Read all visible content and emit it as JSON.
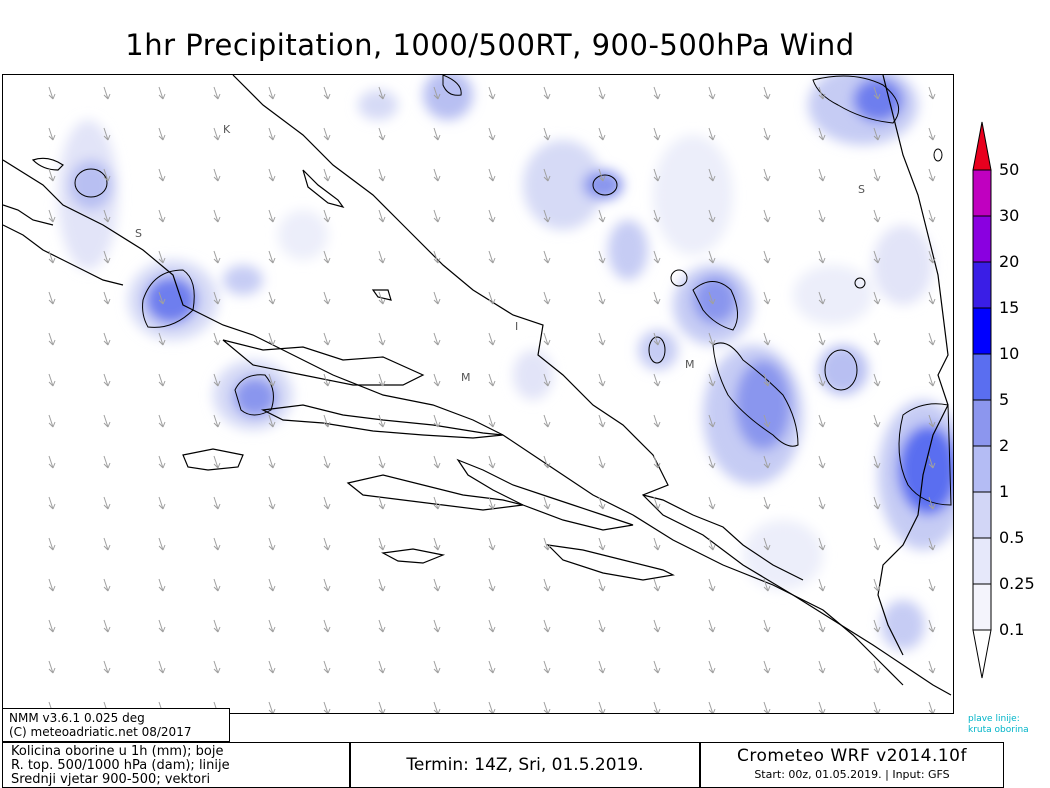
{
  "title": "1hr Precipitation, 1000/500RT, 900-500hPa Wind",
  "map": {
    "place_labels": [
      "K",
      "S",
      "S",
      "M",
      "M",
      "I"
    ]
  },
  "legend": {
    "levels": [
      "50",
      "30",
      "20",
      "15",
      "10",
      "5",
      "2",
      "1",
      "0.5",
      "0.25",
      "0.1"
    ],
    "colors": [
      "#e8001e",
      "#c000c0",
      "#8a00e0",
      "#3a1ee6",
      "#0000ff",
      "#5a6ef0",
      "#8c96ee",
      "#b4bcf4",
      "#d2d6f6",
      "#e6e8fa",
      "#f4f4fc",
      "#ffffff"
    ],
    "note_line1": "plave linije:",
    "note_line2": "kruta oborina"
  },
  "footer": {
    "model_line1": "NMM v3.6.1 0.025 deg",
    "model_line2": "(C) meteoadriatic.net 08/2017",
    "desc_line1": "Kolicina oborine u 1h (mm); boje",
    "desc_line2": "R. top. 500/1000 hPa (dam); linije",
    "desc_line3": "Srednji vjetar 900-500; vektori",
    "termin": "Termin: 14Z, Sri, 01.5.2019.",
    "wrf_title": "Crometeo WRF v2014.10f",
    "wrf_start": "Start: 00z, 01.05.2019. | Input: GFS"
  }
}
